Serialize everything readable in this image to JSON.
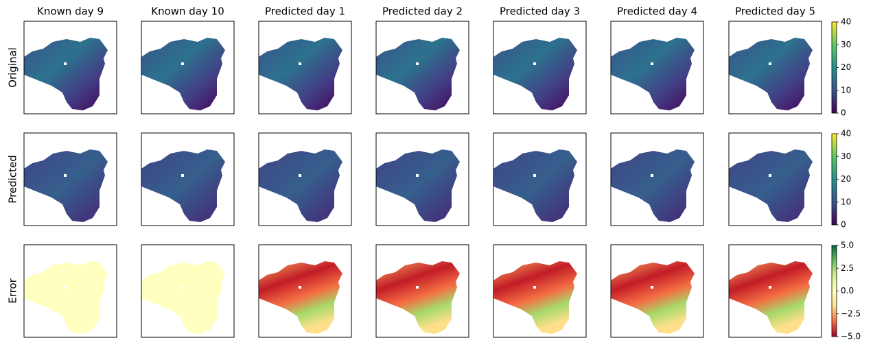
{
  "figure": {
    "columns": [
      "Known day 9",
      "Known day 10",
      "Predicted day 1",
      "Predicted day 2",
      "Predicted day 3",
      "Predicted day 4",
      "Predicted day 5"
    ],
    "rows": [
      {
        "label": "Original",
        "colorbar": {
          "lim": [
            0,
            40
          ],
          "ticks": [
            0,
            10,
            20,
            30,
            40
          ],
          "colors": [
            "#440154",
            "#3b528b",
            "#21918c",
            "#5ec962",
            "#fde725"
          ]
        }
      },
      {
        "label": "Predicted",
        "colorbar": {
          "lim": [
            0,
            40
          ],
          "ticks": [
            0,
            10,
            20,
            30,
            40
          ],
          "colors": [
            "#440154",
            "#3b528b",
            "#21918c",
            "#5ec962",
            "#fde725"
          ]
        }
      },
      {
        "label": "Error",
        "colorbar": {
          "lim": [
            -5,
            5
          ],
          "ticks": [
            {
              "value": -5,
              "label": "−5.0"
            },
            {
              "value": -2.5,
              "label": "−2.5"
            },
            {
              "value": 0,
              "label": "0.0"
            },
            2.5,
            {
              "value": 5,
              "label": "5.0"
            }
          ],
          "colors": [
            "#a50026",
            "#f46d43",
            "#fee08b",
            "#ffffbf",
            "#d9ef8b",
            "#66bd63",
            "#006837"
          ]
        }
      }
    ]
  }
}
